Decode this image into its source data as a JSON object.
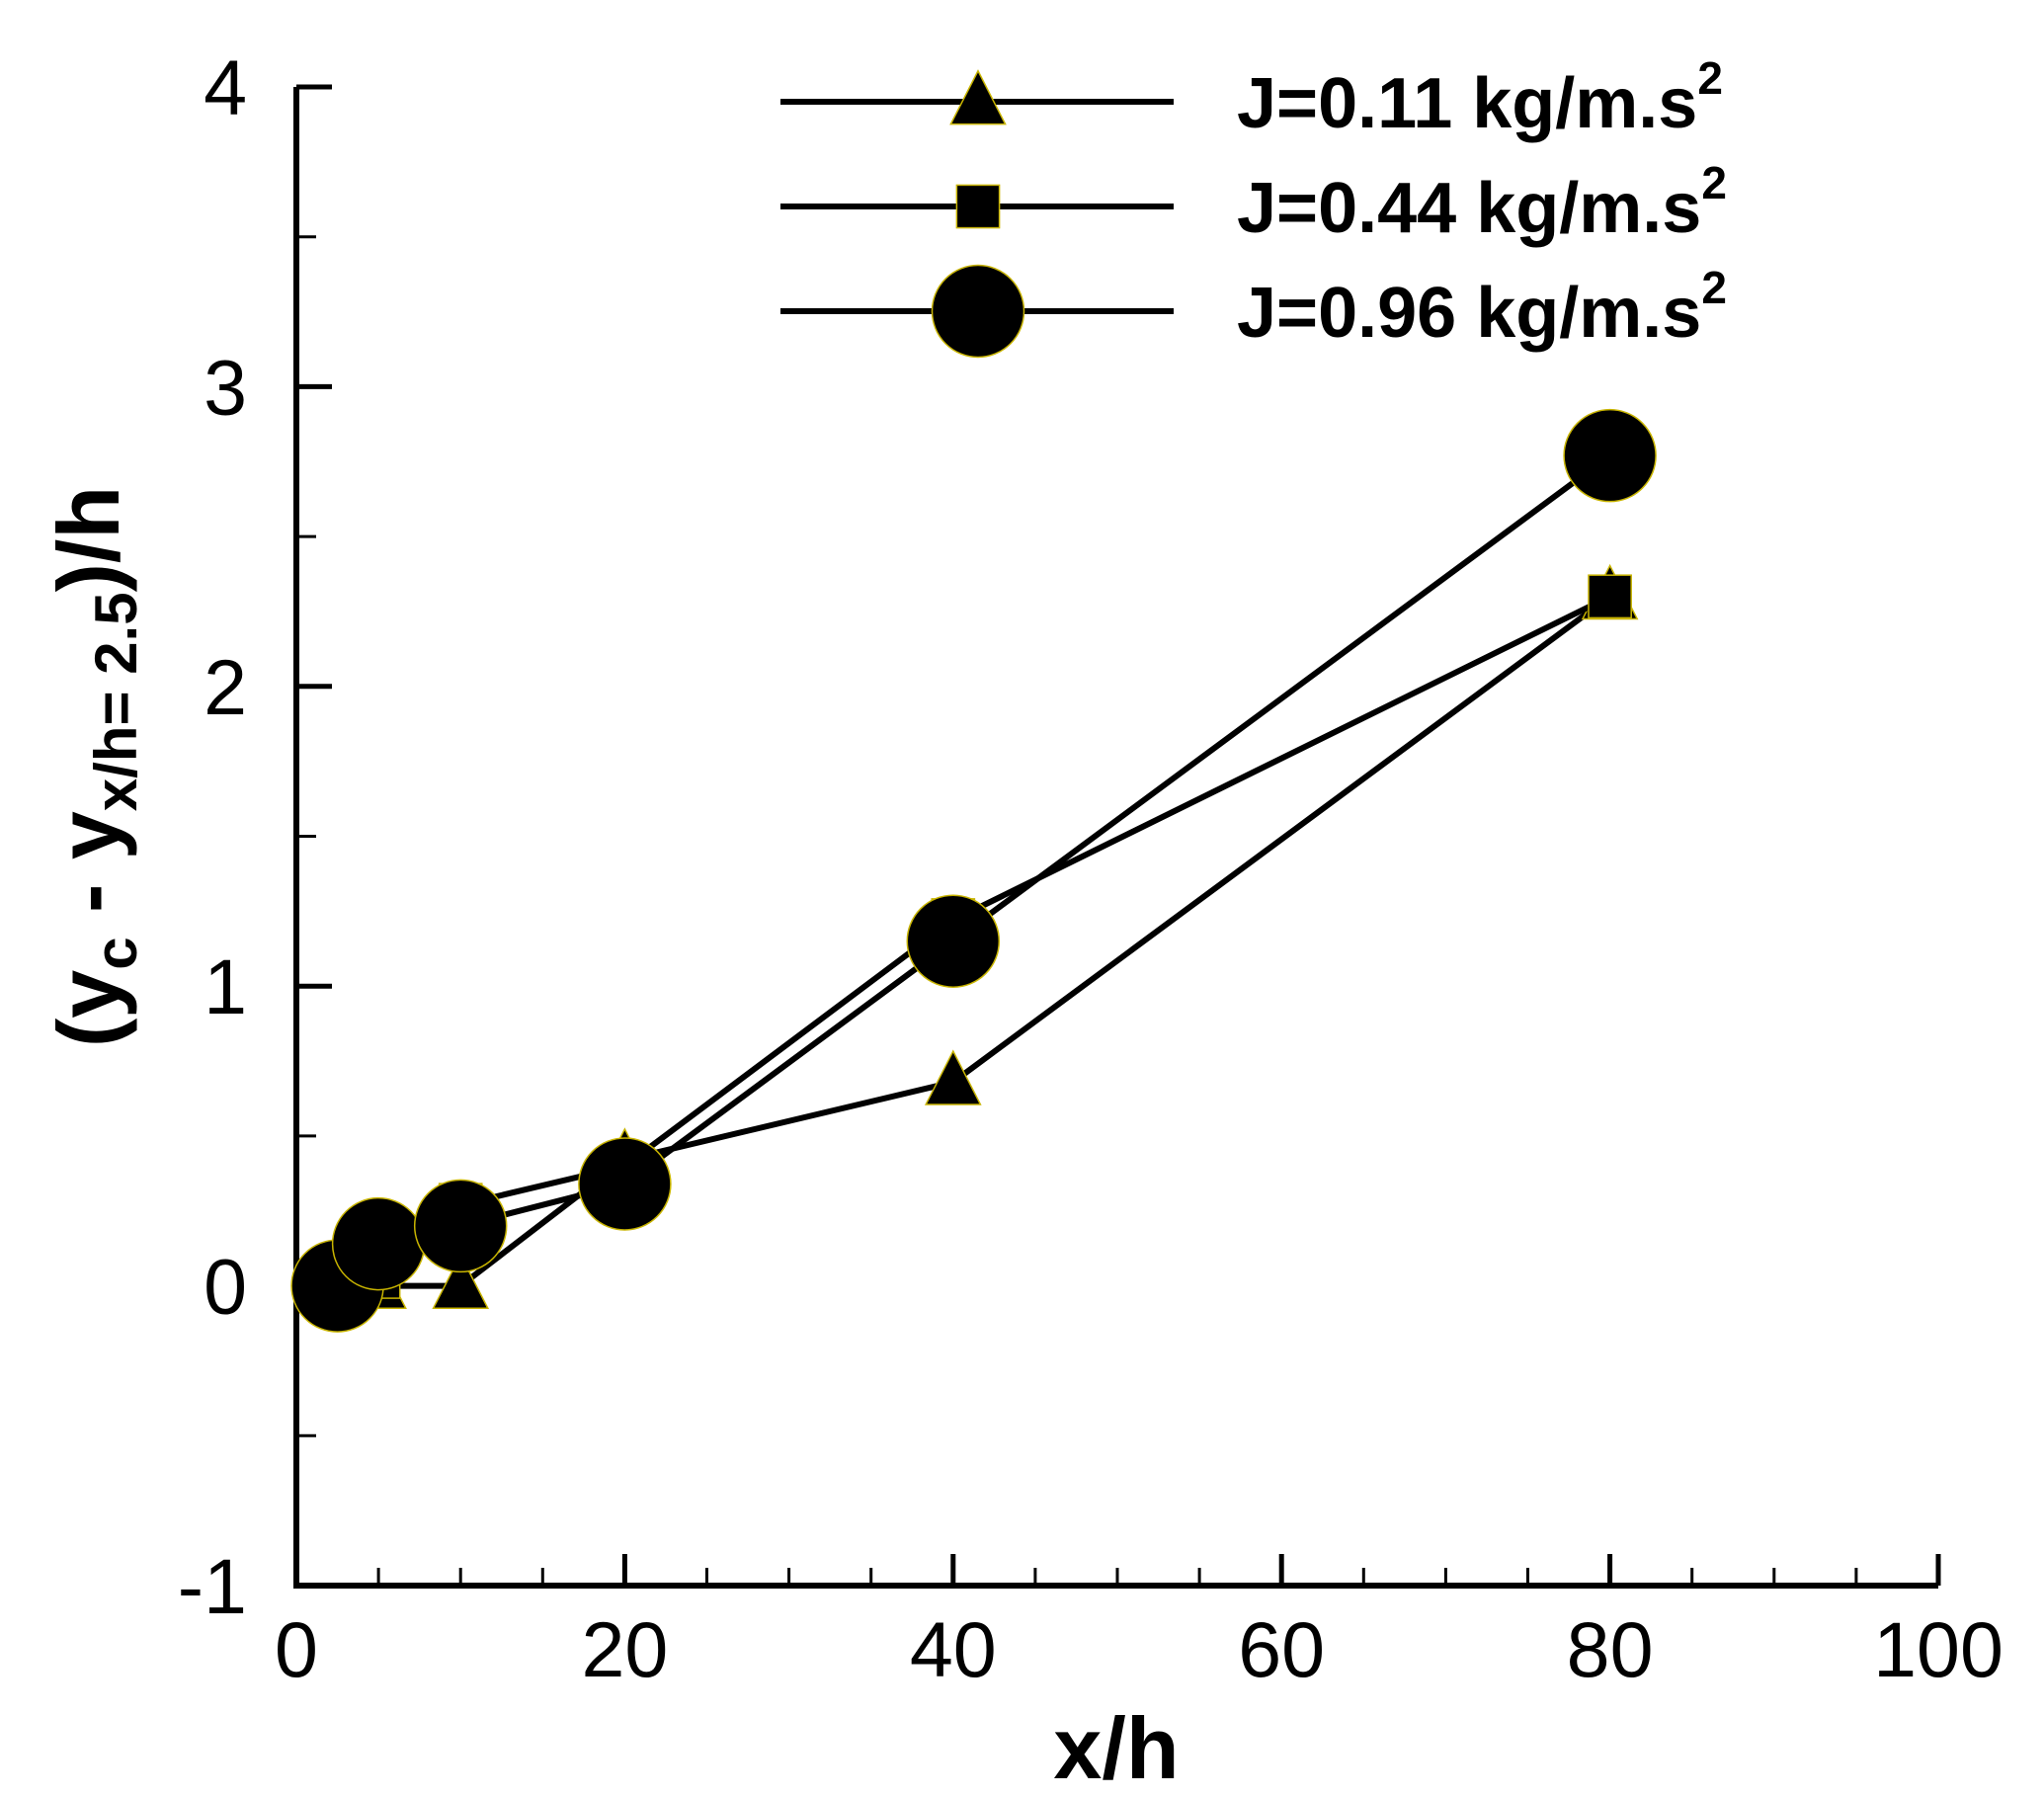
{
  "chart_data": {
    "type": "line",
    "title": "",
    "xlabel": "x/h",
    "ylabel": {
      "prefix": "(y",
      "sub1": "c",
      "middle": " - y",
      "sub2": "x/h= 2.5",
      "suffix": ")/h"
    },
    "xlim": [
      0,
      100
    ],
    "ylim": [
      -1,
      4
    ],
    "xticks": [
      0,
      20,
      40,
      60,
      80,
      100
    ],
    "xtick_labels": [
      "0",
      "20",
      "40",
      "60",
      "80",
      "100"
    ],
    "yticks": [
      -1,
      0,
      1,
      2,
      3,
      4
    ],
    "ytick_labels": [
      "-1",
      "0",
      "1",
      "2",
      "3",
      "4"
    ],
    "x_minor_step": 5,
    "y_minor_step": 0.5,
    "grid": false,
    "legend_position": "top-right",
    "series": [
      {
        "name": "J=0.11 kg/m.s",
        "superscript": "2",
        "marker": "triangle",
        "x": [
          5,
          10,
          20,
          40,
          80
        ],
        "y": [
          0.0,
          0.0,
          0.42,
          0.68,
          2.3
        ]
      },
      {
        "name": "J=0.44 kg/m.s",
        "superscript": "2",
        "marker": "square",
        "x": [
          5,
          10,
          20,
          40,
          80
        ],
        "y": [
          0.03,
          0.27,
          0.4,
          1.22,
          2.3
        ]
      },
      {
        "name": "J=0.96 kg/m.s",
        "superscript": "2",
        "marker": "circle",
        "x": [
          2.5,
          5,
          10,
          20,
          40,
          80
        ],
        "y": [
          0.0,
          0.14,
          0.2,
          0.34,
          1.15,
          2.77
        ]
      }
    ],
    "colors": {
      "line": "#000000",
      "marker_fill": "#000000",
      "marker_edge": "#c8b400"
    }
  }
}
